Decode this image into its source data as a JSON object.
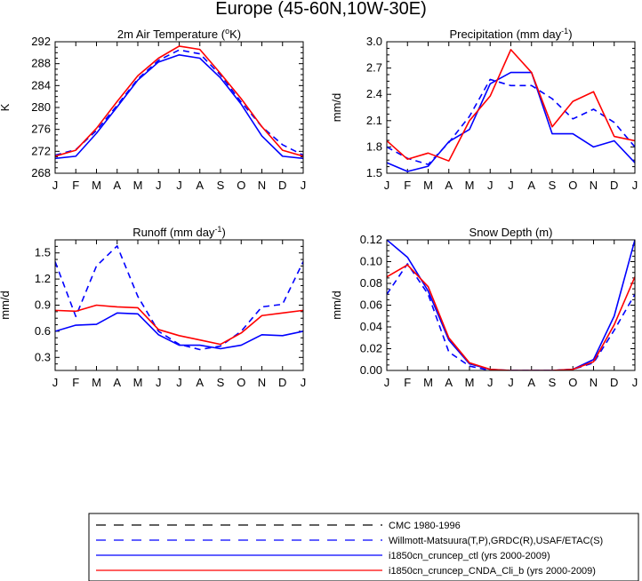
{
  "title": "Europe (45-60N,10W-30E)",
  "colors": {
    "black": "#000000",
    "blue": "#0000ff",
    "red": "#ff0000"
  },
  "legend": {
    "entries": [
      {
        "label": "CMC 1980-1996",
        "color": "#000000",
        "dash": true
      },
      {
        "label": "Willmott-Matsuura(T,P),GRDC(R),USAF/ETAC(S)",
        "color": "#0000ff",
        "dash": true
      },
      {
        "label": "i1850cn_cruncep_ctl (yrs 2000-2009)",
        "color": "#0000ff",
        "dash": false
      },
      {
        "label": "i1850cn_cruncep_CNDA_Cli_b (yrs 2000-2009)",
        "color": "#ff0000",
        "dash": false
      }
    ]
  },
  "chart_data": [
    {
      "type": "line",
      "title_pre": "2m Air Temperature (",
      "title_sup": "o",
      "title_post": "K)",
      "ylabel": "K",
      "categories": [
        "J",
        "F",
        "M",
        "A",
        "M",
        "J",
        "J",
        "A",
        "S",
        "O",
        "N",
        "D",
        "J"
      ],
      "ylim": [
        268,
        292
      ],
      "yticks": [
        268,
        272,
        276,
        280,
        284,
        288,
        292
      ],
      "ytick_labels": [
        "268",
        "272",
        "276",
        "280",
        "284",
        "288",
        "292"
      ],
      "grid": false,
      "series": [
        {
          "name": "Willmott-Matsuura(T,P),GRDC(R),USAF/ETAC(S)",
          "color": "#0000ff",
          "dash": true,
          "values": [
            271.3,
            272.3,
            275.8,
            280.4,
            285.2,
            288.6,
            290.5,
            289.8,
            285.9,
            281.0,
            276.5,
            273.2,
            271.3
          ]
        },
        {
          "name": "i1850cn_cruncep_ctl (yrs 2000-2009)",
          "color": "#0000ff",
          "dash": false,
          "values": [
            270.7,
            271.1,
            275.3,
            280.1,
            285.0,
            288.3,
            289.6,
            289.0,
            285.4,
            280.6,
            274.8,
            271.1,
            270.7
          ]
        },
        {
          "name": "i1850cn_cruncep_CNDA_Cli_b (yrs 2000-2009)",
          "color": "#ff0000",
          "dash": false,
          "values": [
            271.1,
            272.2,
            276.2,
            281.1,
            285.8,
            289.0,
            291.2,
            290.6,
            286.2,
            281.6,
            276.5,
            272.2,
            271.1
          ]
        }
      ]
    },
    {
      "type": "line",
      "title_pre": "Precipitation (mm day",
      "title_sup": "-1",
      "title_post": ")",
      "ylabel": "mm/d",
      "categories": [
        "J",
        "F",
        "M",
        "A",
        "M",
        "J",
        "J",
        "A",
        "S",
        "O",
        "N",
        "D",
        "J"
      ],
      "ylim": [
        1.5,
        3.0
      ],
      "yticks": [
        1.5,
        1.8,
        2.1,
        2.4,
        2.7,
        3.0
      ],
      "ytick_labels": [
        "1.5",
        "1.8",
        "2.1",
        "2.4",
        "2.7",
        "3.0"
      ],
      "grid": false,
      "series": [
        {
          "name": "Willmott-Matsuura(T,P),GRDC(R),USAF/ETAC(S)",
          "color": "#0000ff",
          "dash": true,
          "values": [
            1.8,
            1.67,
            1.6,
            1.85,
            2.15,
            2.57,
            2.5,
            2.5,
            2.35,
            2.12,
            2.23,
            2.08,
            1.8
          ]
        },
        {
          "name": "i1850cn_cruncep_ctl (yrs 2000-2009)",
          "color": "#0000ff",
          "dash": false,
          "values": [
            1.62,
            1.52,
            1.58,
            1.86,
            2.0,
            2.52,
            2.65,
            2.65,
            1.95,
            1.95,
            1.8,
            1.87,
            1.62
          ]
        },
        {
          "name": "i1850cn_cruncep_CNDA_Cli_b (yrs 2000-2009)",
          "color": "#ff0000",
          "dash": false,
          "values": [
            1.87,
            1.66,
            1.73,
            1.64,
            2.1,
            2.38,
            2.91,
            2.65,
            2.03,
            2.32,
            2.43,
            1.92,
            1.87
          ]
        }
      ]
    },
    {
      "type": "line",
      "title_pre": "Runoff (mm day",
      "title_sup": "-1",
      "title_post": ")",
      "ylabel": "mm/d",
      "categories": [
        "J",
        "F",
        "M",
        "A",
        "M",
        "J",
        "J",
        "A",
        "S",
        "O",
        "N",
        "D",
        "J"
      ],
      "ylim": [
        0.15,
        1.65
      ],
      "yticks": [
        0.3,
        0.6,
        0.9,
        1.2,
        1.5
      ],
      "ytick_labels": [
        "0.3",
        "0.6",
        "0.9",
        "1.2",
        "1.5"
      ],
      "grid": false,
      "series": [
        {
          "name": "Willmott-Matsuura(T,P),GRDC(R),USAF/ETAC(S)",
          "color": "#0000ff",
          "dash": true,
          "values": [
            1.4,
            0.77,
            1.35,
            1.58,
            1.0,
            0.6,
            0.45,
            0.39,
            0.43,
            0.6,
            0.88,
            0.91,
            1.4
          ]
        },
        {
          "name": "i1850cn_cruncep_ctl (yrs 2000-2009)",
          "color": "#0000ff",
          "dash": false,
          "values": [
            0.6,
            0.67,
            0.68,
            0.81,
            0.8,
            0.56,
            0.44,
            0.44,
            0.4,
            0.44,
            0.56,
            0.55,
            0.6
          ]
        },
        {
          "name": "i1850cn_cruncep_CNDA_Cli_b (yrs 2000-2009)",
          "color": "#ff0000",
          "dash": false,
          "values": [
            0.84,
            0.83,
            0.9,
            0.88,
            0.87,
            0.62,
            0.55,
            0.5,
            0.45,
            0.58,
            0.78,
            0.81,
            0.84
          ]
        }
      ]
    },
    {
      "type": "line",
      "title_pre": "Snow Depth (m)",
      "title_sup": "",
      "title_post": "",
      "ylabel": "mm/d",
      "categories": [
        "J",
        "F",
        "M",
        "A",
        "M",
        "J",
        "J",
        "A",
        "S",
        "O",
        "N",
        "D",
        "J"
      ],
      "ylim": [
        0.0,
        0.12
      ],
      "yticks": [
        0.0,
        0.02,
        0.04,
        0.06,
        0.08,
        0.1,
        0.12
      ],
      "ytick_labels": [
        "0.00",
        "0.02",
        "0.04",
        "0.06",
        "0.08",
        "0.10",
        "0.12"
      ],
      "grid": false,
      "series": [
        {
          "name": "Willmott-Matsuura(T,P),GRDC(R),USAF/ETAC(S)",
          "color": "#0000ff",
          "dash": true,
          "values": [
            0.07,
            0.098,
            0.07,
            0.017,
            0.004,
            0.0,
            0.0,
            0.0,
            0.0,
            0.001,
            0.007,
            0.037,
            0.07
          ]
        },
        {
          "name": "i1850cn_cruncep_ctl (yrs 2000-2009)",
          "color": "#0000ff",
          "dash": false,
          "values": [
            0.12,
            0.104,
            0.073,
            0.028,
            0.006,
            0.001,
            0.0,
            0.0,
            0.0,
            0.001,
            0.01,
            0.05,
            0.12
          ]
        },
        {
          "name": "i1850cn_cruncep_CNDA_Cli_b (yrs 2000-2009)",
          "color": "#ff0000",
          "dash": false,
          "values": [
            0.086,
            0.097,
            0.077,
            0.03,
            0.007,
            0.001,
            0.0,
            0.0,
            0.0,
            0.001,
            0.008,
            0.042,
            0.086
          ]
        }
      ]
    }
  ]
}
